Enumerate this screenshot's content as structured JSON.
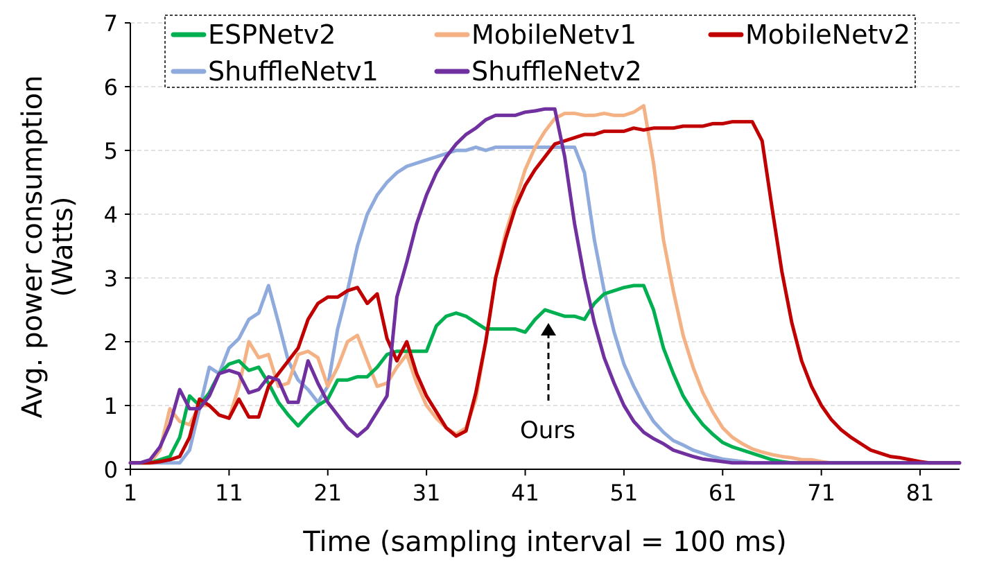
{
  "chart_data": {
    "type": "line",
    "title": "",
    "xlabel": "Time (sampling interval = 100 ms)",
    "ylabel_line1": "Avg. power consumption",
    "ylabel_line2": "(Watts)",
    "xlim": [
      1,
      85
    ],
    "ylim": [
      0,
      7
    ],
    "xticks": [
      1,
      11,
      21,
      31,
      41,
      51,
      61,
      71,
      81
    ],
    "yticks": [
      0,
      1,
      2,
      3,
      4,
      5,
      6,
      7
    ],
    "grid": true,
    "legend_position": "top",
    "annotation": {
      "text": "Ours",
      "target_series": "ESPNetv2",
      "x": 43,
      "y": 2.45
    },
    "series": [
      {
        "name": "ESPNetv2",
        "color": "#00b050",
        "values": [
          0.1,
          0.1,
          0.1,
          0.15,
          0.2,
          0.5,
          1.15,
          1.0,
          1.2,
          1.5,
          1.65,
          1.7,
          1.55,
          1.6,
          1.35,
          1.05,
          0.85,
          0.68,
          0.85,
          1.0,
          1.1,
          1.4,
          1.4,
          1.45,
          1.45,
          1.6,
          1.8,
          1.85,
          1.85,
          1.85,
          1.85,
          2.25,
          2.4,
          2.45,
          2.4,
          2.3,
          2.2,
          2.2,
          2.2,
          2.2,
          2.15,
          2.35,
          2.5,
          2.45,
          2.4,
          2.4,
          2.35,
          2.6,
          2.75,
          2.8,
          2.85,
          2.88,
          2.88,
          2.5,
          1.9,
          1.5,
          1.15,
          0.9,
          0.7,
          0.55,
          0.42,
          0.35,
          0.3,
          0.25,
          0.2,
          0.15,
          0.12,
          0.1,
          0.1,
          0.1,
          0.1,
          0.1,
          0.1,
          0.1,
          0.1,
          0.1,
          0.1,
          0.1,
          0.1,
          0.1,
          0.1,
          0.1,
          0.1,
          0.1,
          0.1
        ]
      },
      {
        "name": "MobileNetv1",
        "color": "#f4b183",
        "values": [
          0.1,
          0.1,
          0.1,
          0.3,
          0.95,
          0.75,
          0.7,
          1.0,
          1.0,
          0.85,
          0.8,
          1.3,
          2.0,
          1.75,
          1.8,
          1.3,
          1.35,
          1.8,
          1.85,
          1.75,
          1.3,
          1.6,
          2.0,
          2.1,
          1.7,
          1.3,
          1.35,
          1.6,
          1.8,
          1.35,
          1.0,
          0.8,
          0.65,
          0.55,
          0.65,
          1.1,
          2.0,
          3.0,
          3.7,
          4.2,
          4.7,
          5.05,
          5.3,
          5.5,
          5.58,
          5.58,
          5.55,
          5.55,
          5.58,
          5.55,
          5.55,
          5.6,
          5.7,
          4.8,
          3.6,
          2.8,
          2.1,
          1.6,
          1.2,
          0.9,
          0.65,
          0.5,
          0.4,
          0.32,
          0.27,
          0.23,
          0.2,
          0.18,
          0.15,
          0.15,
          0.12,
          0.1,
          0.1,
          0.1,
          0.1,
          0.1,
          0.1,
          0.1,
          0.1,
          0.1,
          0.1,
          0.1,
          0.1,
          0.1,
          0.1
        ]
      },
      {
        "name": "MobileNetv2",
        "color": "#c00000",
        "values": [
          0.1,
          0.1,
          0.1,
          0.12,
          0.15,
          0.2,
          0.5,
          1.1,
          1.0,
          0.85,
          0.8,
          1.1,
          0.82,
          0.82,
          1.3,
          1.5,
          1.7,
          1.9,
          2.35,
          2.6,
          2.7,
          2.7,
          2.8,
          2.85,
          2.6,
          2.75,
          2.05,
          1.7,
          2.0,
          1.5,
          1.15,
          0.9,
          0.65,
          0.52,
          0.6,
          1.2,
          2.0,
          3.0,
          3.6,
          4.1,
          4.45,
          4.7,
          4.9,
          5.1,
          5.15,
          5.2,
          5.25,
          5.25,
          5.3,
          5.3,
          5.3,
          5.35,
          5.32,
          5.35,
          5.35,
          5.35,
          5.38,
          5.38,
          5.38,
          5.42,
          5.42,
          5.45,
          5.45,
          5.45,
          5.15,
          4.1,
          3.1,
          2.3,
          1.7,
          1.3,
          1.0,
          0.78,
          0.62,
          0.5,
          0.4,
          0.3,
          0.25,
          0.2,
          0.18,
          0.15,
          0.12,
          0.1,
          0.1,
          0.1,
          0.1
        ]
      },
      {
        "name": "ShuffleNetv1",
        "color": "#8faadc",
        "values": [
          0.1,
          0.1,
          0.1,
          0.1,
          0.1,
          0.1,
          0.3,
          0.95,
          1.6,
          1.5,
          1.9,
          2.05,
          2.35,
          2.45,
          2.88,
          2.3,
          1.7,
          1.4,
          1.25,
          1.05,
          1.3,
          2.2,
          2.8,
          3.5,
          4.0,
          4.3,
          4.5,
          4.65,
          4.75,
          4.8,
          4.85,
          4.9,
          4.95,
          5.0,
          5.0,
          5.05,
          5.0,
          5.05,
          5.05,
          5.05,
          5.05,
          5.05,
          5.05,
          5.05,
          5.05,
          5.05,
          4.65,
          3.6,
          2.8,
          2.15,
          1.65,
          1.3,
          1.0,
          0.75,
          0.58,
          0.45,
          0.38,
          0.3,
          0.25,
          0.2,
          0.16,
          0.14,
          0.12,
          0.1,
          0.1,
          0.1,
          0.1,
          0.1,
          0.1,
          0.1,
          0.1,
          0.1,
          0.1,
          0.1,
          0.1,
          0.1,
          0.1,
          0.1,
          0.1,
          0.1,
          0.1,
          0.1,
          0.1,
          0.1,
          0.1
        ]
      },
      {
        "name": "ShuffleNetv2",
        "color": "#7030a0",
        "values": [
          0.1,
          0.1,
          0.15,
          0.35,
          0.7,
          1.25,
          0.95,
          0.95,
          1.15,
          1.5,
          1.55,
          1.5,
          1.2,
          1.25,
          1.45,
          1.4,
          1.05,
          1.05,
          1.7,
          1.35,
          1.05,
          0.85,
          0.65,
          0.52,
          0.65,
          0.9,
          1.15,
          2.7,
          3.25,
          3.85,
          4.3,
          4.65,
          4.9,
          5.1,
          5.25,
          5.35,
          5.48,
          5.55,
          5.55,
          5.55,
          5.6,
          5.62,
          5.65,
          5.65,
          4.9,
          3.85,
          3.0,
          2.3,
          1.75,
          1.35,
          1.0,
          0.75,
          0.58,
          0.48,
          0.4,
          0.3,
          0.25,
          0.2,
          0.16,
          0.14,
          0.12,
          0.1,
          0.1,
          0.1,
          0.1,
          0.1,
          0.1,
          0.1,
          0.1,
          0.1,
          0.1,
          0.1,
          0.1,
          0.1,
          0.1,
          0.1,
          0.1,
          0.1,
          0.1,
          0.1,
          0.1,
          0.1,
          0.1,
          0.1,
          0.1
        ]
      }
    ]
  }
}
